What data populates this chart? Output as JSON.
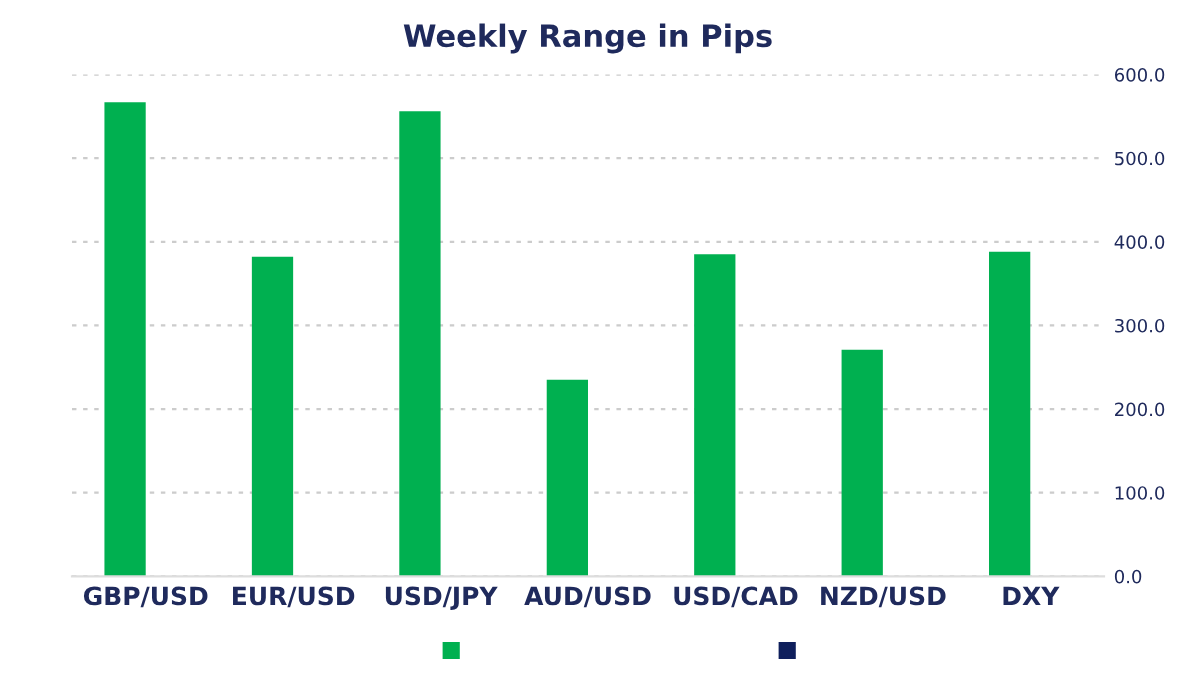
{
  "chart_data": {
    "type": "bar",
    "title": "Weekly Range in Pips",
    "categories": [
      "GBP/USD",
      "EUR/USD",
      "USD/JPY",
      "AUD/USD",
      "USD/CAD",
      "NZD/USD",
      "DXY"
    ],
    "series": [
      {
        "color": "#00b050",
        "values": [
          567,
          382,
          556,
          235,
          385,
          271,
          388
        ]
      },
      {
        "color": "#0f1f5c",
        "values": [
          null,
          null,
          null,
          null,
          null,
          null,
          null
        ]
      }
    ],
    "ylim": [
      0,
      600
    ],
    "yticks": [
      {
        "value": 0,
        "label": "0.0"
      },
      {
        "value": 100,
        "label": "100.0"
      },
      {
        "value": 200,
        "label": "200.0"
      },
      {
        "value": 300,
        "label": "300.0"
      },
      {
        "value": 400,
        "label": "400.0"
      },
      {
        "value": 500,
        "label": "500.0"
      },
      {
        "value": 600,
        "label": "600.0"
      }
    ],
    "grid": "y"
  }
}
